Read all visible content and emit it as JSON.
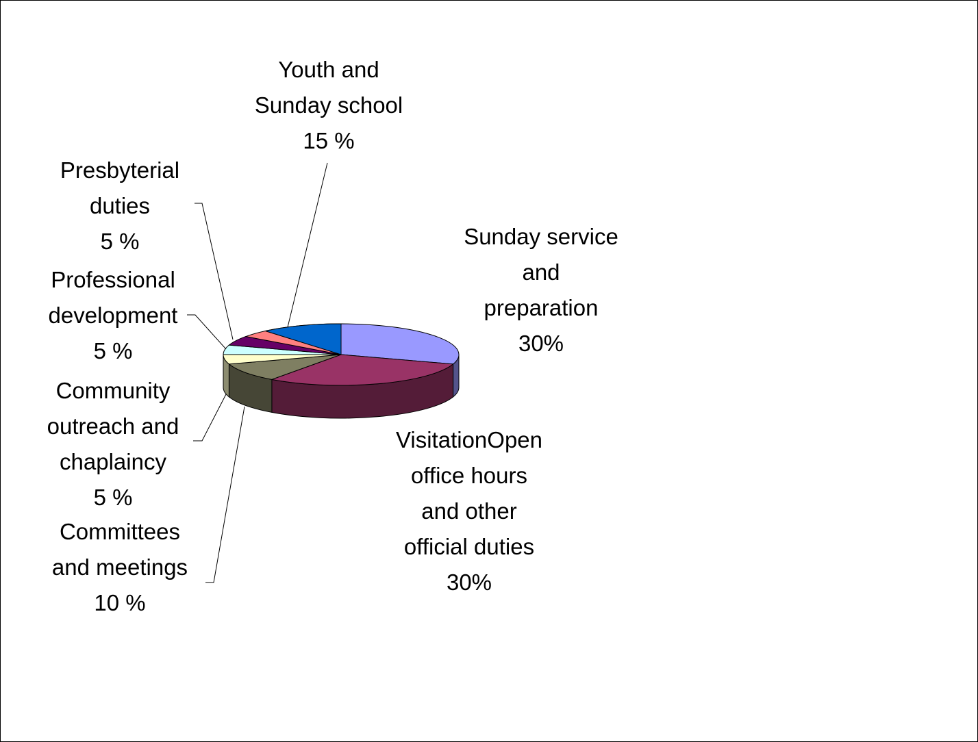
{
  "chart_data": {
    "type": "pie",
    "style": "3d-exploded-perspective",
    "slices": [
      {
        "label_lines": [
          "Sunday service",
          "and",
          "preparation",
          "30%"
        ],
        "value": 30,
        "color": "#9999ff"
      },
      {
        "label_lines": [
          "VisitationOpen",
          "office hours",
          "and other",
          "official duties",
          "30%"
        ],
        "value": 30,
        "color": "#993366"
      },
      {
        "label_lines": [
          "Committees",
          "and meetings",
          "10 %"
        ],
        "value": 10,
        "color": "#7f7f62"
      },
      {
        "label_lines": [
          "Community",
          "outreach and",
          "chaplaincy",
          "5 %"
        ],
        "value": 5,
        "color": "#ffffcc"
      },
      {
        "label_lines": [
          "Professional",
          "development",
          "5 %"
        ],
        "value": 5,
        "color": "#ccffff"
      },
      {
        "label_lines": [
          "Presbyterial",
          "duties",
          "5 %"
        ],
        "value": 5,
        "color": "#660066"
      },
      {
        "label_lines": [
          "Youth and",
          "Sunday school",
          "15 %"
        ],
        "value": 15,
        "color": "#ff8080"
      }
    ],
    "extra_slice_color": "#0066cc",
    "legend": "none",
    "title": ""
  }
}
